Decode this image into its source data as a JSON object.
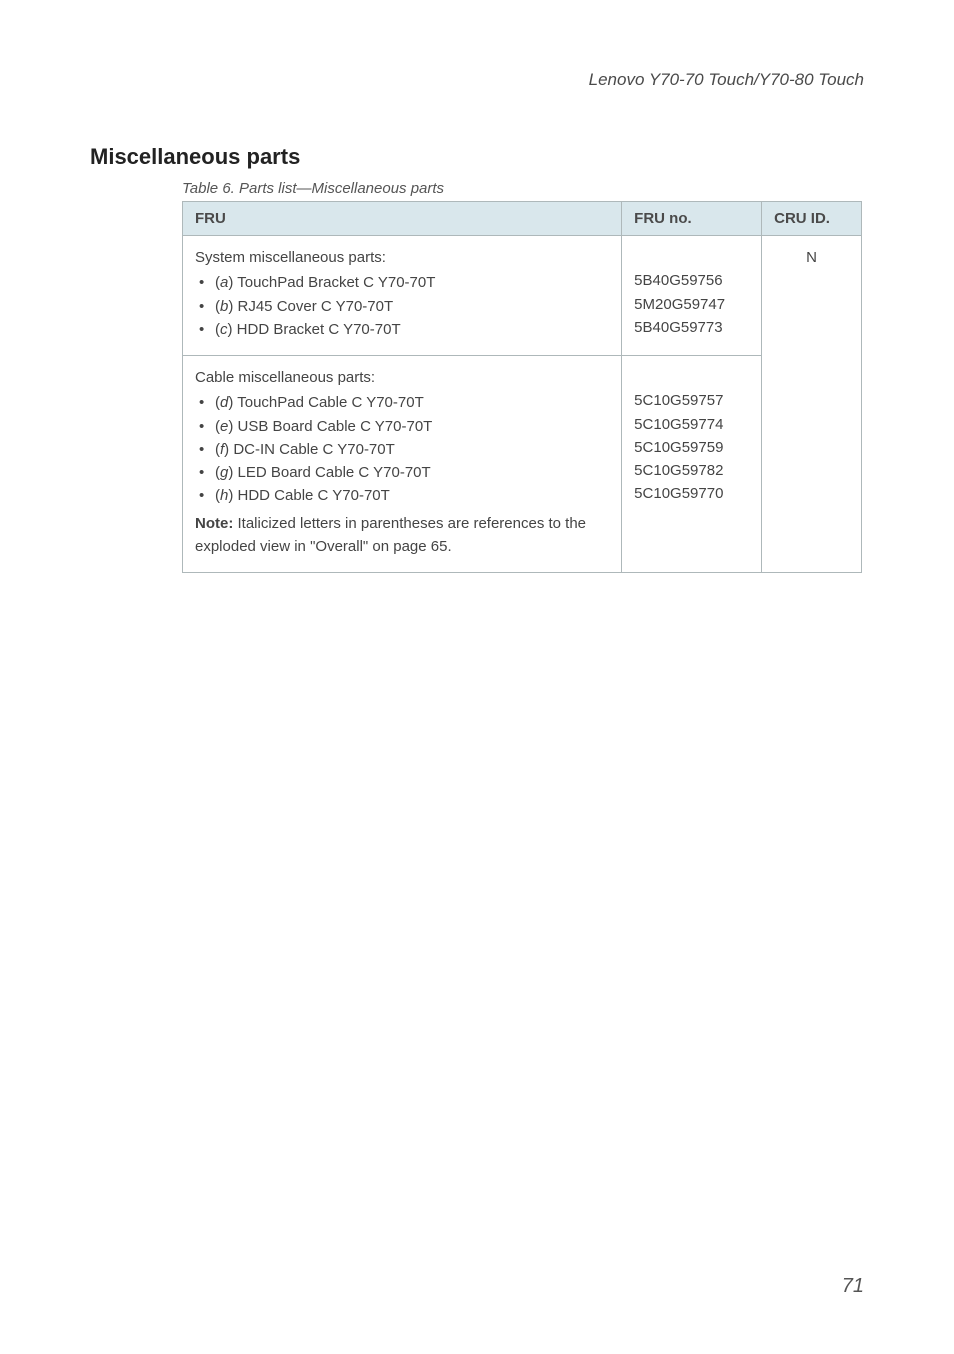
{
  "header": {
    "product_line": "Lenovo Y70-70 Touch/Y70-80 Touch"
  },
  "section": {
    "title": "Miscellaneous parts",
    "table_caption": "Table 6. Parts list—Miscellaneous parts"
  },
  "table": {
    "columns": {
      "fru": "FRU",
      "fru_no": "FRU no.",
      "cru_id": "CRU ID."
    },
    "row1": {
      "intro": "System miscellaneous parts:",
      "items": {
        "a_letter": "a",
        "a_rest": ") TouchPad Bracket C Y70-70T",
        "b_letter": "b",
        "b_rest": ") RJ45 Cover C Y70-70T",
        "c_letter": "c",
        "c_rest": ") HDD Bracket C Y70-70T"
      },
      "fru_nos": {
        "a": "5B40G59756",
        "b": "5M20G59747",
        "c": "5B40G59773"
      }
    },
    "row2": {
      "intro": "Cable miscellaneous parts:",
      "items": {
        "d_letter": "d",
        "d_rest": ") TouchPad Cable C Y70-70T",
        "e_letter": "e",
        "e_rest": ") USB Board Cable C Y70-70T",
        "f_letter": "f",
        "f_rest": ") DC-IN Cable C Y70-70T",
        "g_letter": "g",
        "g_rest": ") LED Board Cable C Y70-70T",
        "h_letter": "h",
        "h_rest": ") HDD Cable C Y70-70T"
      },
      "fru_nos": {
        "d": "5C10G59757",
        "e": "5C10G59774",
        "f": "5C10G59759",
        "g": "5C10G59782",
        "h": "5C10G59770"
      },
      "note_label": "Note:",
      "note_text": " Italicized letters in parentheses are references to the exploded view in \"Overall\" on page 65."
    },
    "cru_id_value": "N"
  },
  "footer": {
    "page_number": "71"
  },
  "style": {
    "header_bg": "#d9e7ec",
    "border_color": "#aeb8ba",
    "body_bg": "#ffffff"
  }
}
